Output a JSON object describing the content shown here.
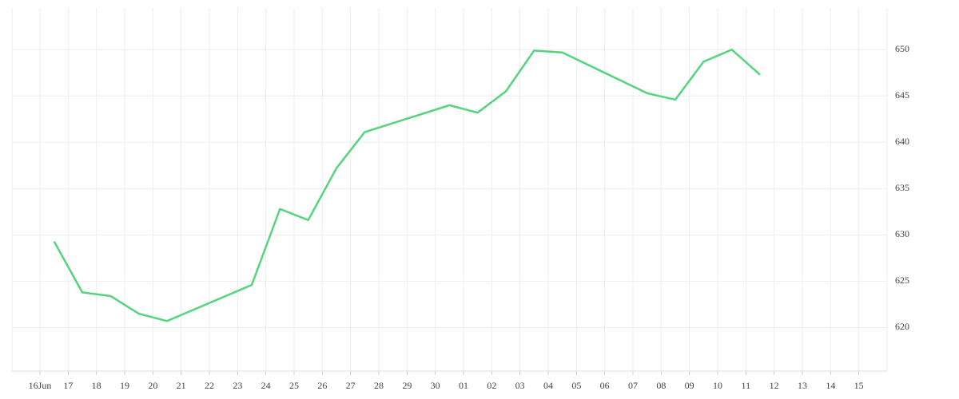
{
  "chart_data": {
    "type": "line",
    "categories": [
      "16Jun",
      "17",
      "18",
      "19",
      "20",
      "21",
      "22",
      "23",
      "24",
      "25",
      "26",
      "27",
      "28",
      "29",
      "30",
      "01",
      "02",
      "03",
      "04",
      "05",
      "06",
      "07",
      "08",
      "09",
      "10",
      "11",
      "12",
      "13",
      "14",
      "15"
    ],
    "series": [
      {
        "color": "#55d47e",
        "x": [
          "16Jun",
          "17",
          "18",
          "19",
          "20",
          "23",
          "24",
          "25",
          "26",
          "27",
          "30",
          "01",
          "02",
          "03",
          "04",
          "07",
          "08",
          "09",
          "10",
          "11"
        ],
        "values": [
          629.3,
          623.8,
          623.4,
          621.5,
          620.7,
          624.6,
          632.8,
          631.6,
          637.2,
          641.1,
          644.0,
          643.2,
          645.5,
          649.9,
          649.7,
          645.3,
          644.6,
          648.7,
          650.0,
          647.3
        ]
      }
    ],
    "ylim": [
      615.3,
      654.5
    ],
    "yticks": [
      620,
      625,
      630,
      635,
      640,
      645,
      650
    ],
    "grid": true
  }
}
